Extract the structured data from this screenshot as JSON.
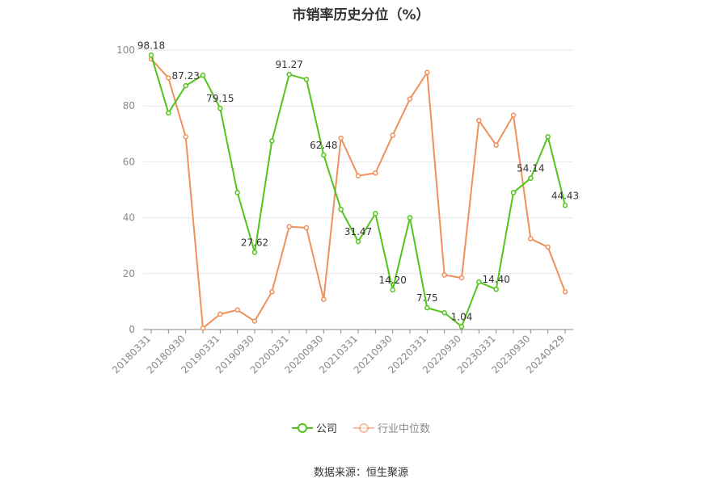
{
  "chart_data": {
    "type": "line",
    "title": "市销率历史分位（%）",
    "source": "数据来源：恒生聚源",
    "ylim": [
      0,
      100
    ],
    "yticks": [
      0,
      20,
      40,
      60,
      80,
      100
    ],
    "grid": true,
    "legend_position": "bottom",
    "x_tick_labels": [
      "20180331",
      "20180930",
      "20190331",
      "20190930",
      "20200331",
      "20200930",
      "20210331",
      "20210930",
      "20220331",
      "20220930",
      "20230331",
      "20230930",
      "20240429"
    ],
    "series": [
      {
        "name": "公司",
        "color": "#52c41a",
        "values": [
          98.18,
          77.5,
          87.23,
          91.0,
          79.15,
          49.0,
          27.62,
          67.5,
          91.27,
          89.5,
          62.48,
          43.0,
          31.47,
          41.5,
          14.2,
          40.0,
          7.75,
          6.0,
          1.04,
          17.0,
          14.4,
          49.0,
          54.14,
          69.0,
          44.43
        ],
        "labels": {
          "0": "98.18",
          "2": "87.23",
          "4": "79.15",
          "6": "27.62",
          "8": "91.27",
          "10": "62.48",
          "12": "31.47",
          "14": "14.20",
          "16": "7.75",
          "18": "1.04",
          "20": "14.40",
          "22": "54.14",
          "24": "44.43"
        }
      },
      {
        "name": "行业中位数",
        "color": "#f0905a",
        "values": [
          96.8,
          90.0,
          69.0,
          0.5,
          5.5,
          7.0,
          3.0,
          13.5,
          36.8,
          36.4,
          10.8,
          68.5,
          55.0,
          56.0,
          69.5,
          82.5,
          92.0,
          19.5,
          18.5,
          74.8,
          66.0,
          76.7,
          32.5,
          29.5,
          13.5
        ]
      }
    ]
  }
}
